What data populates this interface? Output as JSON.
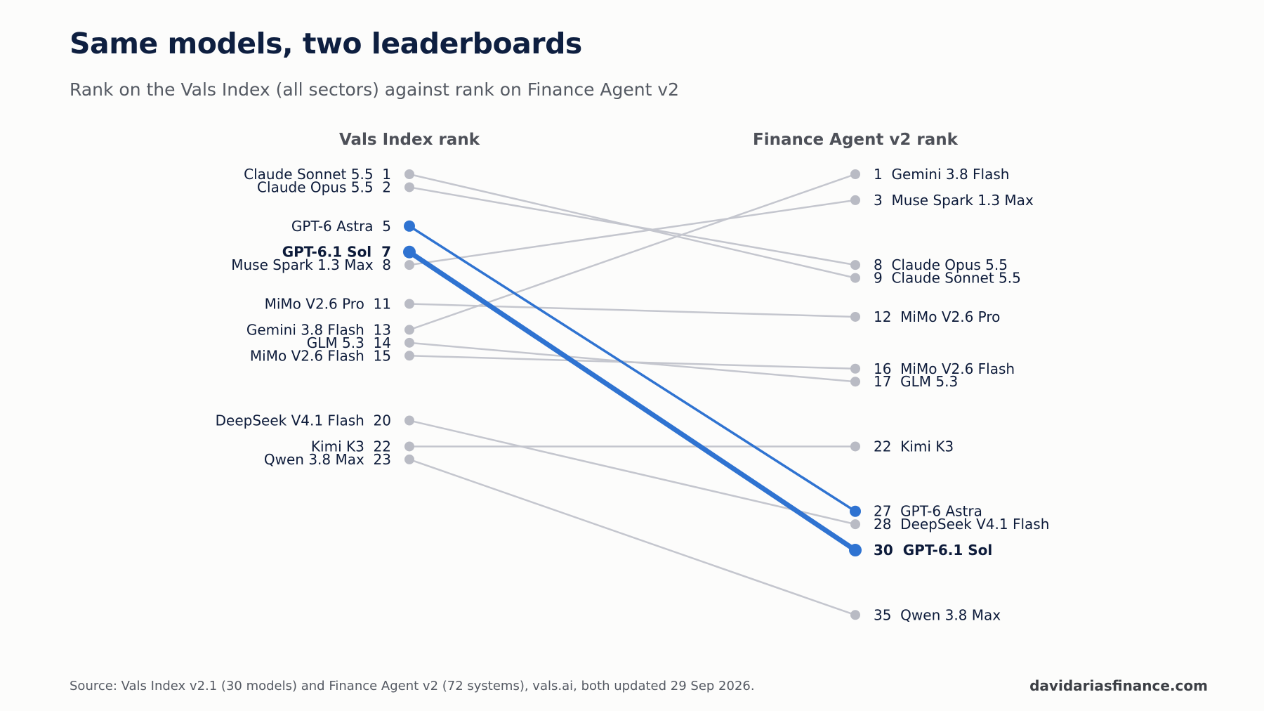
{
  "header": {
    "title": "Same models, two leaderboards",
    "subtitle": "Rank on the Vals Index (all sectors) against rank on Finance Agent v2"
  },
  "footer": {
    "source": "Source: Vals Index v2.1 (30 models) and Finance Agent v2 (72 systems), vals.ai, both updated 29 Sep 2026.",
    "brand": "davidariasfinance.com"
  },
  "colors": {
    "highlight": "#2f73d1",
    "muted_line": "#c4c6ce",
    "muted_dot": "#b9bbc4"
  },
  "chart_data": {
    "type": "slope",
    "left_axis_title": "Vals Index rank",
    "right_axis_title": "Finance Agent v2 rank",
    "rank_domain": [
      1,
      35
    ],
    "series": [
      {
        "name": "Claude Sonnet 5.5",
        "left": 1,
        "right": 9,
        "highlight": "none"
      },
      {
        "name": "Claude Opus 5.5",
        "left": 2,
        "right": 8,
        "highlight": "none"
      },
      {
        "name": "GPT-6 Astra",
        "left": 5,
        "right": 27,
        "highlight": "medium"
      },
      {
        "name": "GPT-6.1 Sol",
        "left": 7,
        "right": 30,
        "highlight": "strong"
      },
      {
        "name": "Muse Spark 1.3 Max",
        "left": 8,
        "right": 3,
        "highlight": "none"
      },
      {
        "name": "MiMo V2.6 Pro",
        "left": 11,
        "right": 12,
        "highlight": "none"
      },
      {
        "name": "Gemini 3.8 Flash",
        "left": 13,
        "right": 1,
        "highlight": "none"
      },
      {
        "name": "GLM 5.3",
        "left": 14,
        "right": 17,
        "highlight": "none"
      },
      {
        "name": "MiMo V2.6 Flash",
        "left": 15,
        "right": 16,
        "highlight": "none"
      },
      {
        "name": "DeepSeek V4.1 Flash",
        "left": 20,
        "right": 28,
        "highlight": "none"
      },
      {
        "name": "Kimi K3",
        "left": 22,
        "right": 22,
        "highlight": "none"
      },
      {
        "name": "Qwen 3.8 Max",
        "left": 23,
        "right": 35,
        "highlight": "none"
      }
    ]
  }
}
